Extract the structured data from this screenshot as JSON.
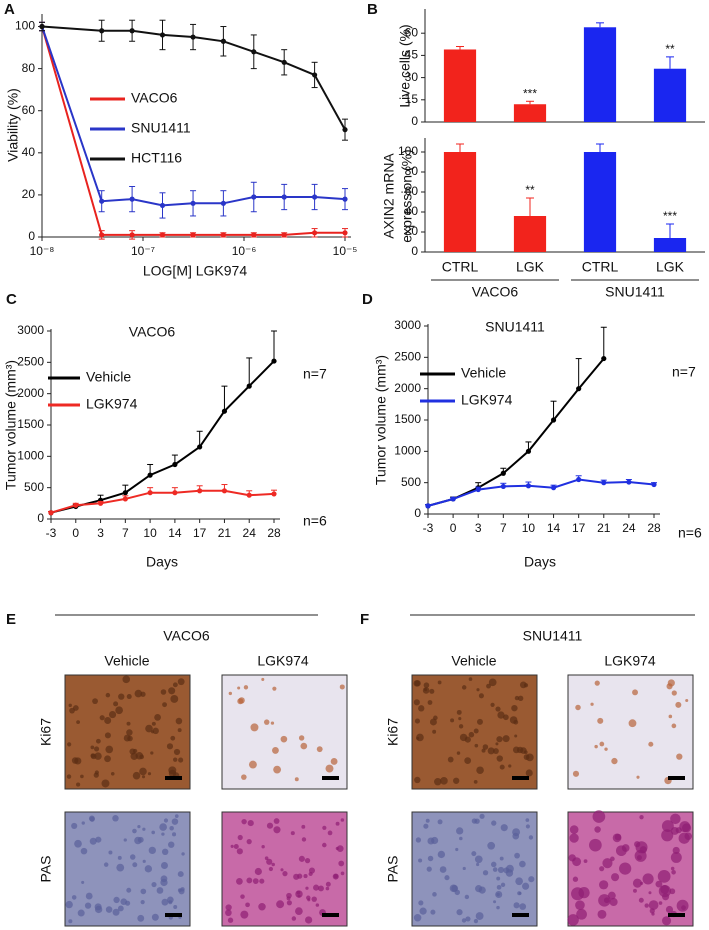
{
  "chart_data": [
    {
      "label": "A",
      "type": "line",
      "xlabel": "LOG[M] LGK974",
      "ylabel": "Viability (%)",
      "log_x": true,
      "x": [
        1e-08,
        3.9e-08,
        7.8e-08,
        1.56e-07,
        3.13e-07,
        6.25e-07,
        1.25e-06,
        2.5e-06,
        5e-06,
        1e-05
      ],
      "xlim": [
        1e-08,
        1e-05
      ],
      "xticks": [
        {
          "value": 1e-08,
          "label": "10⁻⁸"
        },
        {
          "value": 1e-07,
          "label": "10⁻⁷"
        },
        {
          "value": 1e-06,
          "label": "10⁻⁶"
        },
        {
          "value": 1e-05,
          "label": "10⁻⁵"
        }
      ],
      "ylim": [
        0,
        105
      ],
      "yticks": [
        0,
        20,
        40,
        60,
        80,
        100
      ],
      "legend": "center left",
      "error_direction": "both",
      "series": [
        {
          "name": "VACO6",
          "color": "#e8231f",
          "values": [
            100,
            1,
            1,
            1,
            1,
            1,
            1,
            1,
            2,
            2
          ],
          "errors": [
            2,
            2,
            2,
            1,
            1,
            1,
            1,
            1,
            2,
            2
          ]
        },
        {
          "name": "SNU1411",
          "color": "#2a36c8",
          "values": [
            100,
            17,
            18,
            15,
            16,
            16,
            19,
            19,
            19,
            18
          ],
          "errors": [
            2,
            5,
            6,
            6,
            6,
            6,
            7,
            6,
            6,
            5
          ]
        },
        {
          "name": "HCT116",
          "color": "#111111",
          "values": [
            100,
            98,
            98,
            96,
            95,
            93,
            88,
            83,
            77,
            51
          ],
          "errors": [
            2,
            5,
            5,
            7,
            6,
            7,
            8,
            6,
            6,
            5
          ]
        }
      ]
    },
    {
      "label": "B",
      "type": "bar",
      "ylabel": [
        "Live cells (%)"
      ],
      "ylim": [
        0,
        75
      ],
      "yticks": [
        0,
        15,
        30,
        45,
        60
      ],
      "values": [
        49,
        12,
        64,
        36
      ],
      "errors": [
        2,
        2,
        3,
        8
      ],
      "colors": [
        "#f2231c",
        "#f2231c",
        "#1a26f0",
        "#1a26f0"
      ],
      "annotations": [
        null,
        "***",
        null,
        "**"
      ]
    },
    {
      "type": "bar",
      "ylabel": [
        "AXIN2 mRNA",
        "expression (%)"
      ],
      "ylim": [
        0,
        112
      ],
      "yticks": [
        0,
        20,
        40,
        60,
        80,
        100
      ],
      "categories": [
        "CTRL",
        "LGK",
        "CTRL",
        "LGK"
      ],
      "groups": [
        "VACO6",
        "SNU1411"
      ],
      "values": [
        100,
        36,
        100,
        14
      ],
      "errors": [
        8,
        18,
        8,
        14
      ],
      "colors": [
        "#f2231c",
        "#f2231c",
        "#1a26f0",
        "#1a26f0"
      ],
      "annotations": [
        null,
        "**",
        null,
        "***"
      ]
    },
    {
      "label": "C",
      "type": "line",
      "title": "VACO6",
      "xlabel": "Days",
      "ylabel": "Tumor volume (mm³)",
      "categories": [
        -3,
        0,
        3,
        7,
        10,
        14,
        17,
        21,
        24,
        28
      ],
      "ylim": [
        0,
        3000
      ],
      "yticks": [
        0,
        500,
        1000,
        1500,
        2000,
        2500,
        3000
      ],
      "legend": "upper left",
      "error_direction": "up",
      "series": [
        {
          "name": "Vehicle",
          "color": "#000000",
          "end_label": "n=7",
          "values": [
            100,
            200,
            300,
            420,
            700,
            870,
            1150,
            1720,
            2120,
            2520
          ],
          "errors": [
            20,
            30,
            80,
            120,
            170,
            150,
            250,
            400,
            450,
            480
          ]
        },
        {
          "name": "LGK974",
          "color": "#ee2a24",
          "end_label": "n=6",
          "values": [
            100,
            220,
            250,
            320,
            420,
            420,
            450,
            450,
            380,
            400
          ],
          "errors": [
            20,
            30,
            30,
            50,
            80,
            80,
            80,
            100,
            70,
            60
          ]
        }
      ]
    },
    {
      "label": "D",
      "type": "line",
      "title": "SNU1411",
      "xlabel": "Days",
      "ylabel": "Tumor volume (mm³)",
      "categories": [
        -3,
        0,
        3,
        7,
        10,
        14,
        17,
        21,
        24,
        28
      ],
      "ylim": [
        0,
        3000
      ],
      "yticks": [
        0,
        500,
        1000,
        1500,
        2000,
        2500,
        3000
      ],
      "legend": "upper left",
      "error_direction": "up",
      "series": [
        {
          "name": "Vehicle",
          "color": "#000000",
          "end_label": "n=7",
          "values": [
            130,
            240,
            420,
            650,
            1000,
            1500,
            2000,
            2480,
            null,
            null
          ],
          "errors": [
            20,
            30,
            80,
            80,
            150,
            300,
            480,
            500,
            null,
            null
          ]
        },
        {
          "name": "LGK974",
          "color": "#2030e0",
          "end_label": "n=6",
          "values": [
            130,
            240,
            390,
            440,
            450,
            420,
            550,
            500,
            510,
            470
          ],
          "errors": [
            20,
            20,
            40,
            50,
            60,
            40,
            60,
            40,
            40,
            30
          ]
        }
      ]
    }
  ],
  "image_panels": [
    {
      "label": "E",
      "title": "VACO6",
      "columns": [
        "Vehicle",
        "LGK974"
      ],
      "rows": [
        "Ki67",
        "PAS"
      ]
    },
    {
      "label": "F",
      "title": "SNU1411",
      "columns": [
        "Vehicle",
        "LGK974"
      ],
      "rows": [
        "Ki67",
        "PAS"
      ]
    }
  ]
}
